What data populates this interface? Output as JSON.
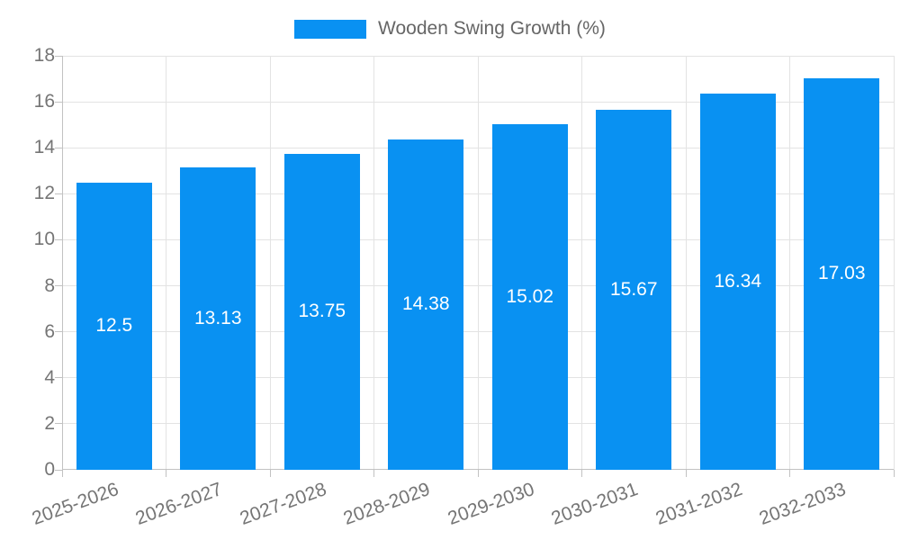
{
  "chart_data": {
    "type": "bar",
    "title": "",
    "legend_label": "Wooden Swing Growth (%)",
    "legend_position": "top",
    "categories": [
      "2025-2026",
      "2026-2027",
      "2027-2028",
      "2028-2029",
      "2029-2030",
      "2030-2031",
      "2031-2032",
      "2032-2033"
    ],
    "values": [
      12.5,
      13.13,
      13.75,
      14.38,
      15.02,
      15.67,
      16.34,
      17.03
    ],
    "value_labels": [
      "12.5",
      "13.13",
      "13.75",
      "14.38",
      "15.02",
      "15.67",
      "16.34",
      "17.03"
    ],
    "xlabel": "",
    "ylabel": "",
    "ylim": [
      0,
      18
    ],
    "ytick_step": 2,
    "ytick_labels": [
      "0",
      "2",
      "4",
      "6",
      "8",
      "10",
      "12",
      "14",
      "16",
      "18"
    ],
    "grid": true,
    "colors": {
      "bar": "#0991f2",
      "grid": "#e3e3e3",
      "axis": "#c2c2c2",
      "tick_text": "#757575",
      "legend_text": "#666666",
      "value_label_text": "#ffffff",
      "background": "#ffffff"
    }
  }
}
